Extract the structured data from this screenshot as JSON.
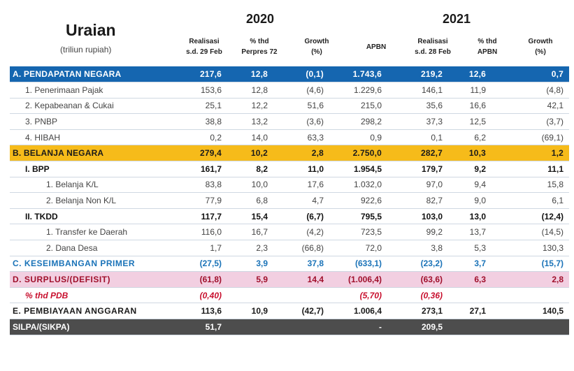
{
  "header": {
    "title": "Uraian",
    "subtitle": "(triliun rupiah)",
    "year_2020": "2020",
    "year_2021": "2021",
    "columns": [
      [
        "Realisasi",
        "s.d. 29 Feb"
      ],
      [
        "% thd",
        "Perpres 72"
      ],
      [
        "Growth",
        "(%)"
      ],
      [
        "APBN"
      ],
      [
        "Realisasi",
        "s.d. 28 Feb"
      ],
      [
        "% thd",
        "APBN"
      ],
      [
        "Growth",
        "(%)"
      ]
    ]
  },
  "rows": [
    {
      "label": "A. PENDAPATAN NEGARA",
      "values": [
        "217,6",
        "12,8",
        "(0,1)",
        "1.743,6",
        "219,2",
        "12,6",
        "0,7"
      ]
    },
    {
      "label": "1.  Penerimaan Pajak",
      "values": [
        "153,6",
        "12,8",
        "(4,6)",
        "1.229,6",
        "146,1",
        "11,9",
        "(4,8)"
      ]
    },
    {
      "label": "2.  Kepabeanan & Cukai",
      "values": [
        "25,1",
        "12,2",
        "51,6",
        "215,0",
        "35,6",
        "16,6",
        "42,1"
      ]
    },
    {
      "label": "3.  PNBP",
      "values": [
        "38,8",
        "13,2",
        "(3,6)",
        "298,2",
        "37,3",
        "12,5",
        "(3,7)"
      ]
    },
    {
      "label": "4.  HIBAH",
      "values": [
        "0,2",
        "14,0",
        "63,3",
        "0,9",
        "0,1",
        "6,2",
        "(69,1)"
      ]
    },
    {
      "label": "B. BELANJA NEGARA",
      "values": [
        "279,4",
        "10,2",
        "2,8",
        "2.750,0",
        "282,7",
        "10,3",
        "1,2"
      ]
    },
    {
      "label": "I. BPP",
      "values": [
        "161,7",
        "8,2",
        "11,0",
        "1.954,5",
        "179,7",
        "9,2",
        "11,1"
      ]
    },
    {
      "label": "1.  Belanja K/L",
      "values": [
        "83,8",
        "10,0",
        "17,6",
        "1.032,0",
        "97,0",
        "9,4",
        "15,8"
      ]
    },
    {
      "label": "2.  Belanja Non K/L",
      "values": [
        "77,9",
        "6,8",
        "4,7",
        "922,6",
        "82,7",
        "9,0",
        "6,1"
      ]
    },
    {
      "label": "II. TKDD",
      "values": [
        "117,7",
        "15,4",
        "(6,7)",
        "795,5",
        "103,0",
        "13,0",
        "(12,4)"
      ]
    },
    {
      "label": "1.  Transfer ke Daerah",
      "values": [
        "116,0",
        "16,7",
        "(4,2)",
        "723,5",
        "99,2",
        "13,7",
        "(14,5)"
      ]
    },
    {
      "label": "2.  Dana Desa",
      "values": [
        "1,7",
        "2,3",
        "(66,8)",
        "72,0",
        "3,8",
        "5,3",
        "130,3"
      ]
    },
    {
      "label": "C. KESEIMBANGAN PRIMER",
      "values": [
        "(27,5)",
        "3,9",
        "37,8",
        "(633,1)",
        "(23,2)",
        "3,7",
        "(15,7)"
      ]
    },
    {
      "label": "D. SURPLUS/(DEFISIT)",
      "values": [
        "(61,8)",
        "5,9",
        "14,4",
        "(1.006,4)",
        "(63,6)",
        "6,3",
        "2,8"
      ]
    },
    {
      "label": "% thd PDB",
      "values": [
        "(0,40)",
        "",
        "",
        "(5,70)",
        "(0,36)",
        "",
        ""
      ]
    },
    {
      "label": "E. PEMBIAYAAN ANGGARAN",
      "values": [
        "113,6",
        "10,9",
        "(42,7)",
        "1.006,4",
        "273,1",
        "27,1",
        "140,5"
      ]
    },
    {
      "label": "SILPA/(SIKPA)",
      "values": [
        "51,7",
        "",
        "",
        "-",
        "209,5",
        "",
        ""
      ]
    }
  ]
}
